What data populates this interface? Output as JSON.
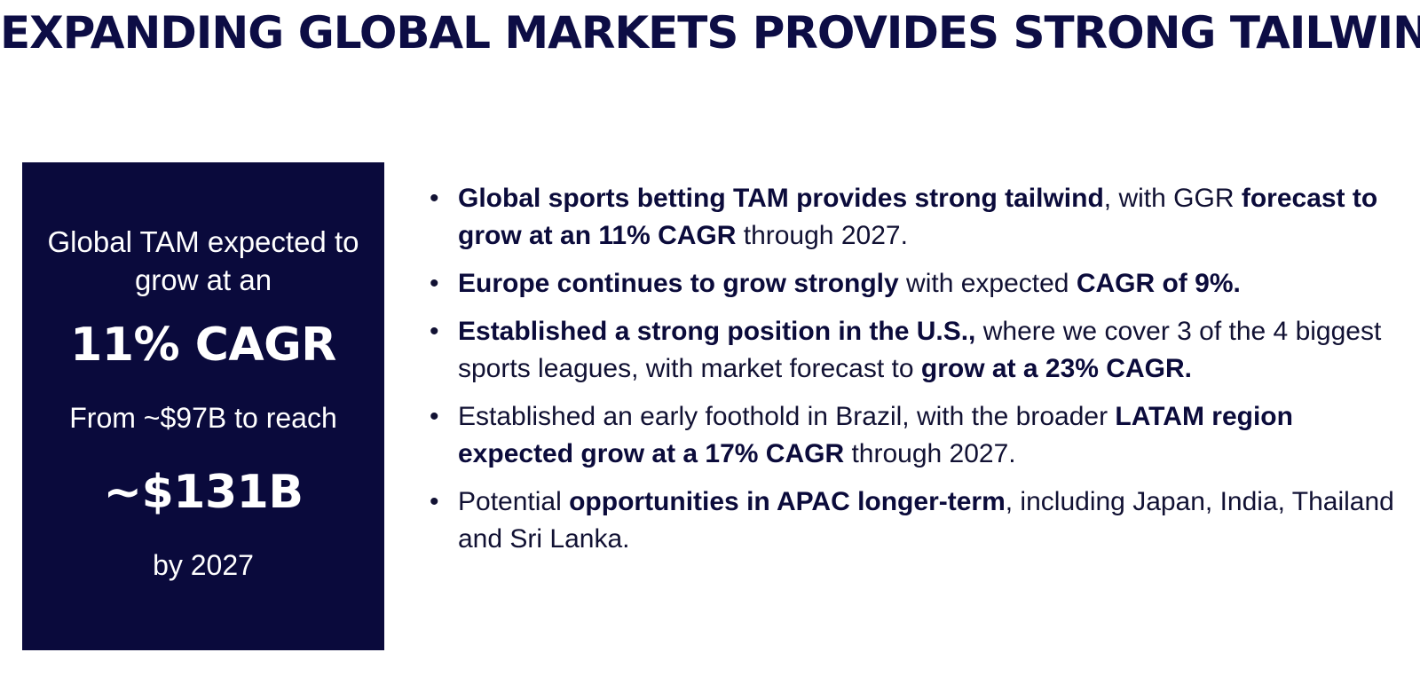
{
  "title": "EXPANDING GLOBAL MARKETS PROVIDES STRONG TAILWIND",
  "panel": {
    "line1": "Global TAM expected to",
    "line2": "grow at an",
    "cagr": "11% CAGR",
    "from": "From ~$97B to reach",
    "target": "~$131B",
    "by": "by 2027"
  },
  "bullet_marker": "•",
  "bullets": [
    {
      "b1": "Global sports betting TAM provides strong tailwind",
      "t1": ", with GGR ",
      "b2": "forecast to grow at an 11% CAGR",
      "t2": " through 2027."
    },
    {
      "b1": "Europe continues to grow strongly",
      "t1": " with expected ",
      "b2": "CAGR of 9%.",
      "t2": ""
    },
    {
      "b1": "Established a strong position in the U.S.,",
      "t1": " where we cover 3 of the 4 biggest sports leagues, with market forecast to ",
      "b2": "grow at a 23% CAGR.",
      "t2": ""
    },
    {
      "t0": "Established an early foothold in Brazil, with the broader ",
      "b1": "LATAM region expected grow at a 17% CAGR",
      "t1": " through 2027."
    },
    {
      "t0": "Potential ",
      "b1": "opportunities in APAC longer-term",
      "t1": ",  including Japan, India, Thailand and Sri Lanka."
    }
  ]
}
